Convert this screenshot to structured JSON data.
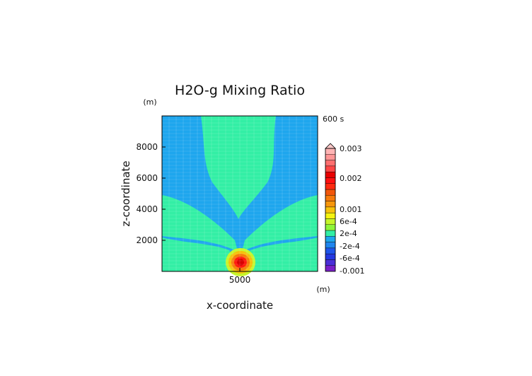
{
  "chart_data": {
    "type": "heatmap",
    "title": "H2O-g Mixing Ratio",
    "xlabel": "x-coordinate",
    "ylabel": "z-coordinate",
    "x_unit": "(m)",
    "y_unit": "(m)",
    "time_label": "600 s",
    "x_ticks": [
      5000
    ],
    "y_ticks": [
      2000,
      4000,
      6000,
      8000
    ],
    "xlim": [
      0,
      10000
    ],
    "ylim": [
      0,
      10000
    ],
    "grid": true,
    "colorbar": {
      "labels": [
        {
          "value": 0.003,
          "text": "0.003"
        },
        {
          "value": 0.002,
          "text": "0.002"
        },
        {
          "value": 0.001,
          "text": "0.001"
        },
        {
          "value": 0.0006,
          "text": "6e-4"
        },
        {
          "value": 0.0002,
          "text": "2e-4"
        },
        {
          "value": -0.0002,
          "text": "-2e-4"
        },
        {
          "value": -0.0006,
          "text": "-6e-4"
        },
        {
          "value": -0.001,
          "text": "-0.001"
        }
      ],
      "colors": [
        "#7a1fc9",
        "#4a2fd8",
        "#2438e0",
        "#1e55ea",
        "#1f85ee",
        "#1ea6ee",
        "#33efa5",
        "#8ef53a",
        "#c6f52a",
        "#f5f30f",
        "#f7c10c",
        "#f6960c",
        "#f67a0b",
        "#f2560b",
        "#ff2a10",
        "#ff1010",
        "#e80000",
        "#ff4646",
        "#ff6f6f",
        "#ff9696",
        "#ffb4b4"
      ],
      "top_color": "#ffc8c8",
      "top_arrow": true
    },
    "background_color": "#1ea6ee",
    "plume_color": "#33efa5",
    "core_colors": [
      "#c6f52a",
      "#f5c00c",
      "#f67a0b",
      "#ff1a10",
      "#d80000"
    ]
  }
}
